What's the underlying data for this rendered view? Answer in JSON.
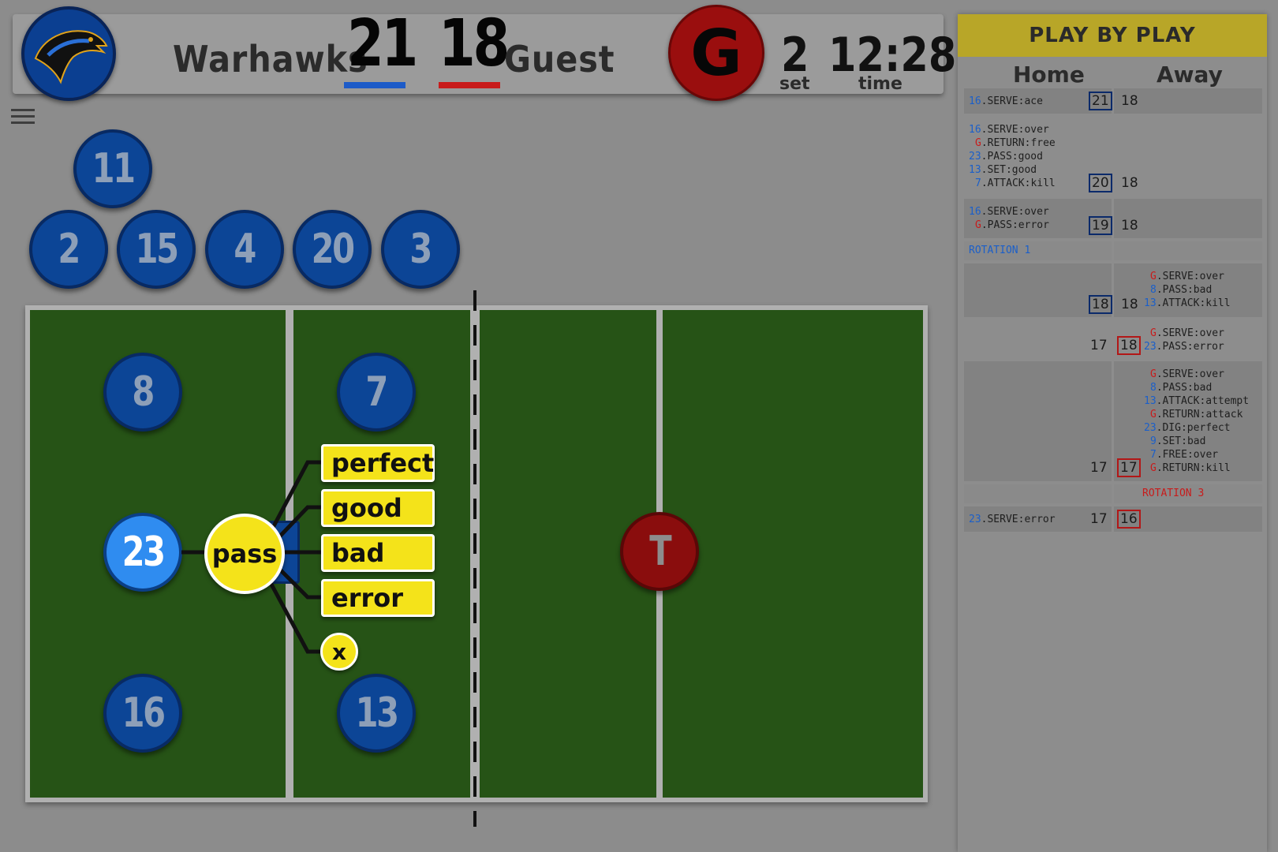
{
  "scoreboard": {
    "home_team": "Warhawks",
    "home_score": "21",
    "away_score": "18",
    "away_team": "Guest",
    "serving_badge": "G",
    "set_value": "2",
    "set_label": "set",
    "time_value": "12:28",
    "time_label": "time",
    "home_color": "#1d5bc8",
    "away_color": "#c81b1b"
  },
  "bench": [
    {
      "number": "11"
    },
    {
      "number": "2"
    },
    {
      "number": "15"
    },
    {
      "number": "4"
    },
    {
      "number": "20"
    },
    {
      "number": "3"
    }
  ],
  "court": {
    "players": [
      {
        "number": "8"
      },
      {
        "number": "7"
      },
      {
        "number": "23",
        "active": true
      },
      {
        "number": "16"
      },
      {
        "number": "13"
      }
    ],
    "opponent_token": "T"
  },
  "action_menu": {
    "action": "pass",
    "options": [
      "perfect",
      "good",
      "bad",
      "error"
    ],
    "cancel": "x"
  },
  "play_by_play": {
    "title": "PLAY BY PLAY",
    "col_home": "Home",
    "col_away": "Away",
    "rows": [
      {
        "home_actions": [
          [
            "16",
            ".SERVE:ace"
          ]
        ],
        "home_score": "21",
        "away_score": "18"
      },
      {
        "home_actions": [
          [
            "16",
            ".SERVE:over"
          ],
          [
            "G",
            ".RETURN:free"
          ],
          [
            "23",
            ".PASS:good"
          ],
          [
            "13",
            ".SET:good"
          ],
          [
            "7",
            ".ATTACK:kill"
          ]
        ],
        "home_score": "20",
        "away_score": "18"
      },
      {
        "home_actions": [
          [
            "16",
            ".SERVE:over"
          ],
          [
            "G",
            ".PASS:error"
          ]
        ],
        "home_score": "19",
        "away_score": "18"
      },
      {
        "rotation_home": "ROTATION 1"
      },
      {
        "away_actions": [
          [
            "G",
            ".SERVE:over"
          ],
          [
            "8",
            ".PASS:bad"
          ],
          [
            "13",
            ".ATTACK:kill"
          ]
        ],
        "home_score": "18",
        "away_score": "18"
      },
      {
        "away_actions": [
          [
            "G",
            ".SERVE:over"
          ],
          [
            "23",
            ".PASS:error"
          ]
        ],
        "home_score": "17",
        "away_score": "18"
      },
      {
        "away_actions": [
          [
            "G",
            ".SERVE:over"
          ],
          [
            "8",
            ".PASS:bad"
          ],
          [
            "13",
            ".ATTACK:attempt"
          ],
          [
            "G",
            ".RETURN:attack"
          ],
          [
            "23",
            ".DIG:perfect"
          ],
          [
            "9",
            ".SET:bad"
          ],
          [
            "7",
            ".FREE:over"
          ],
          [
            "G",
            ".RETURN:kill"
          ]
        ],
        "home_score": "17",
        "away_score": "17"
      },
      {
        "rotation_away": "ROTATION 3"
      },
      {
        "home_actions": [
          [
            "23",
            ".SERVE:error"
          ]
        ],
        "home_score": "17",
        "away_score": "16"
      }
    ]
  }
}
